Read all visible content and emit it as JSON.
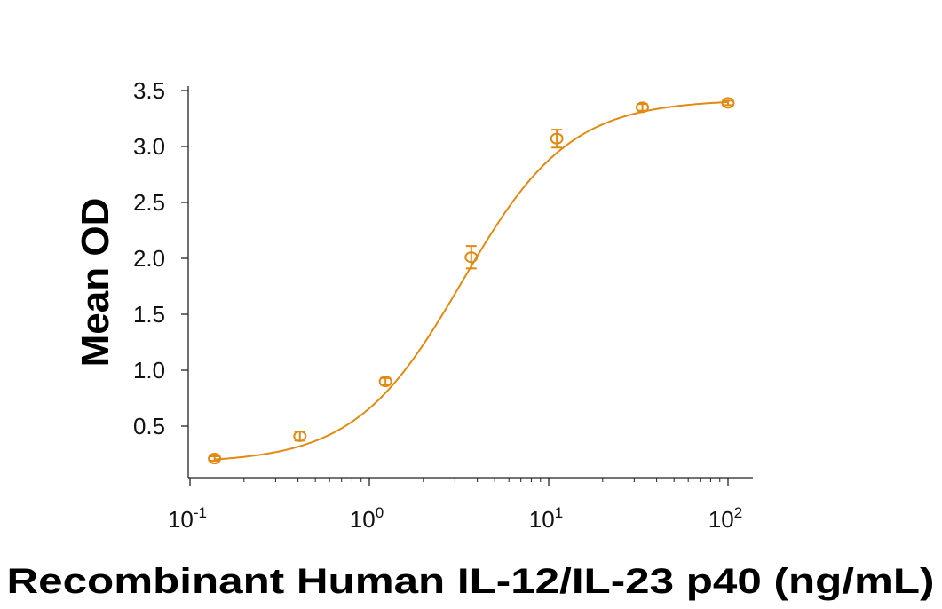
{
  "chart_data": {
    "type": "scatter",
    "title": "",
    "xlabel": "Recombinant Human IL-12/IL-23 p40 (ng/mL)",
    "ylabel": "Mean OD",
    "x_scale": "log",
    "xlim": [
      0.1,
      100
    ],
    "ylim": [
      0,
      3.5
    ],
    "x_ticks": [
      {
        "value": 0.1,
        "base": "10",
        "exp": "-1"
      },
      {
        "value": 1,
        "base": "10",
        "exp": "0"
      },
      {
        "value": 10,
        "base": "10",
        "exp": "1"
      },
      {
        "value": 100,
        "base": "10",
        "exp": "2"
      }
    ],
    "y_ticks": [
      {
        "value": 0.5,
        "label": "0.5"
      },
      {
        "value": 1.0,
        "label": "1.0"
      },
      {
        "value": 1.5,
        "label": "1.5"
      },
      {
        "value": 2.0,
        "label": "2.0"
      },
      {
        "value": 2.5,
        "label": "2.5"
      },
      {
        "value": 3.0,
        "label": "3.0"
      },
      {
        "value": 3.5,
        "label": "3.5"
      }
    ],
    "grid": false,
    "color": "#e08a12",
    "series": [
      {
        "x": [
          0.137,
          0.41,
          1.23,
          3.7,
          11.1,
          33.3,
          100
        ],
        "y": [
          0.21,
          0.41,
          0.9,
          2.01,
          3.07,
          3.35,
          3.39
        ],
        "error": [
          0.02,
          0.04,
          0.03,
          0.1,
          0.08,
          0.03,
          0.02
        ],
        "fit_curve": "4PL sigmoid"
      }
    ]
  }
}
